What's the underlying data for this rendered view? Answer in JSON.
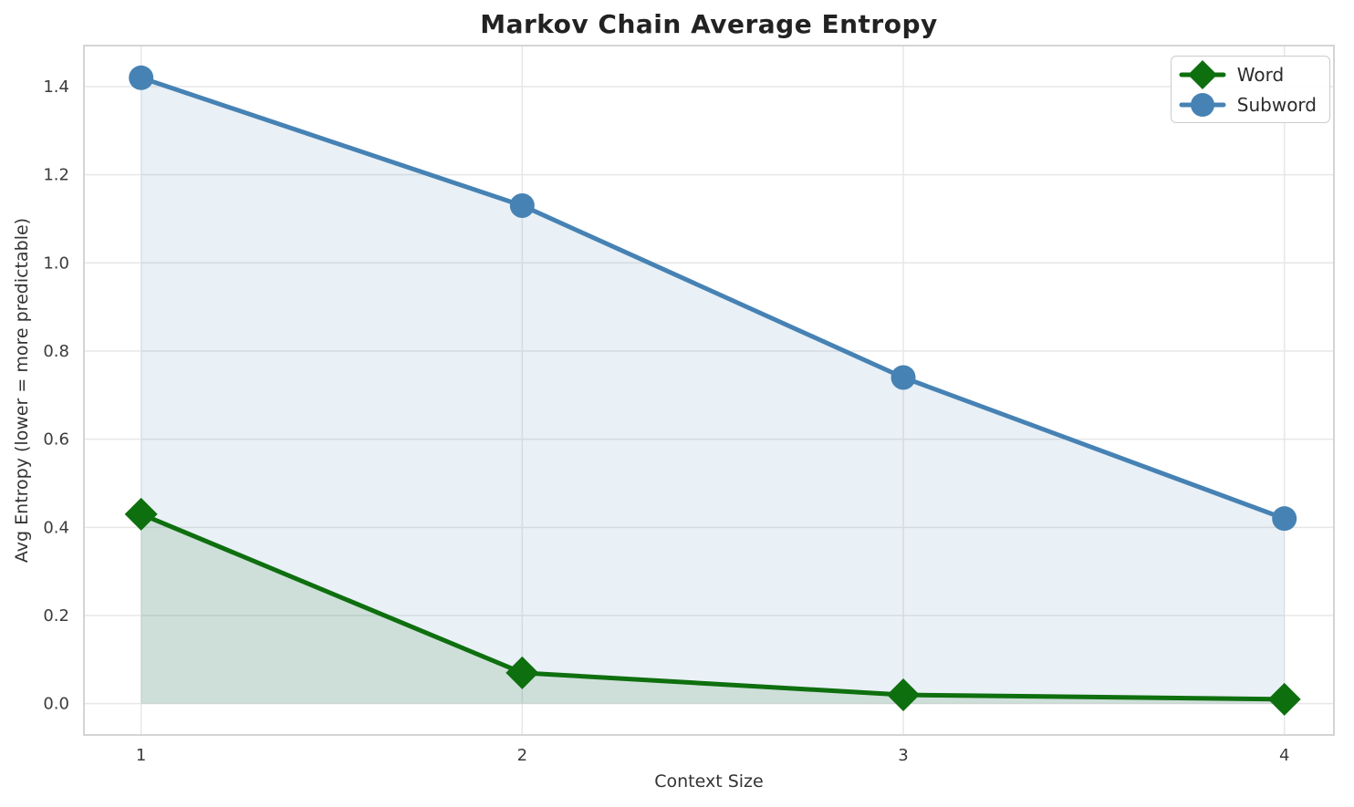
{
  "chart_data": {
    "type": "line",
    "title": "Markov Chain Average Entropy",
    "xlabel": "Context Size",
    "ylabel": "Avg Entropy (lower = more predictable)",
    "x": [
      1,
      2,
      3,
      4
    ],
    "series": [
      {
        "name": "Word",
        "values": [
          0.43,
          0.07,
          0.02,
          0.01
        ],
        "color": "#0e6f0e",
        "marker": "diamond"
      },
      {
        "name": "Subword",
        "values": [
          1.42,
          1.13,
          0.74,
          0.42
        ],
        "color": "#4682b4",
        "marker": "circle"
      }
    ],
    "area_fill": true,
    "area_fill_opacity": 0.12,
    "xticks": [
      "1",
      "2",
      "3",
      "4"
    ],
    "yticks": [
      "0.0",
      "0.2",
      "0.4",
      "0.6",
      "0.8",
      "1.0",
      "1.2",
      "1.4"
    ],
    "xlim": [
      0.85,
      4.13
    ],
    "ylim": [
      -0.071,
      1.493
    ],
    "grid": true,
    "grid_color": "#e7e7e7",
    "spine_color": "#d4d4d4",
    "tick_text_color": "#3b3b3b",
    "legend_position": "upper right"
  }
}
